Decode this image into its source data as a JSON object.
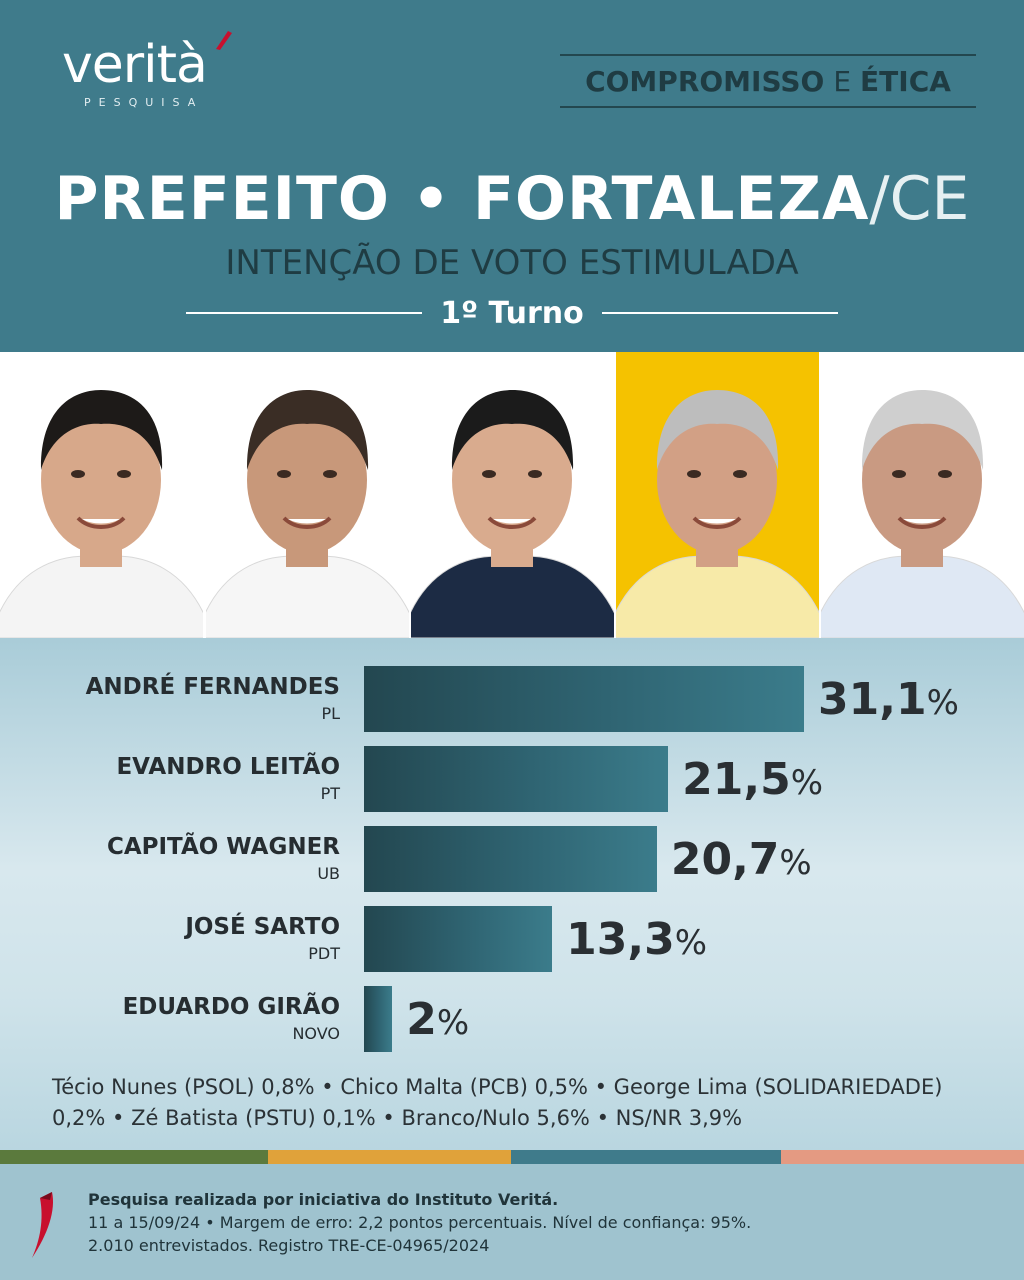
{
  "brand": {
    "logo_word": "verità",
    "logo_sub": "PESQUISA",
    "slogan_part1": "COMPROMISSO",
    "slogan_part2": "E",
    "slogan_part3": "ÉTICA",
    "accent_color": "#c8102e"
  },
  "header": {
    "title_main": "PREFEITO • FORTALEZA",
    "title_state": "/CE",
    "subtitle": "INTENÇÃO DE VOTO ESTIMULADA",
    "round": "1º Turno",
    "background_color": "#3f7b8b"
  },
  "photos": [
    {
      "name": "André Fernandes",
      "bg": "#ffffff"
    },
    {
      "name": "Evandro Leitão",
      "bg": "#ffffff"
    },
    {
      "name": "Capitão Wagner",
      "bg": "#ffffff"
    },
    {
      "name": "José Sarto",
      "bg": "#f5c200"
    },
    {
      "name": "Eduardo Girão",
      "bg": "#ffffff"
    }
  ],
  "chart_data": {
    "type": "bar",
    "orientation": "horizontal",
    "categories": [
      "ANDRÉ FERNANDES",
      "EVANDRO LEITÃO",
      "CAPITÃO WAGNER",
      "JOSÉ SARTO",
      "EDUARDO GIRÃO"
    ],
    "parties": [
      "PL",
      "PT",
      "UB",
      "PDT",
      "NOVO"
    ],
    "values": [
      31.1,
      21.5,
      20.7,
      13.3,
      2
    ],
    "value_labels": [
      "31,1",
      "21,5",
      "20,7",
      "13,3",
      "2"
    ],
    "unit": "%",
    "title": "",
    "xlabel": "",
    "ylabel": "",
    "xlim": [
      0,
      31.1
    ],
    "grid": false,
    "legend": "none"
  },
  "others_text": "Técio Nunes (PSOL) 0,8% • Chico Malta (PCB) 0,5% • George Lima (SOLIDARIEDADE) 0,2% • Zé Batista (PSTU) 0,1% • Branco/Nulo 5,6% • NS/NR 3,9%",
  "stripe_colors": [
    "#5b7a3d",
    "#e0a23a",
    "#3f7b8b",
    "#e49a82"
  ],
  "footer": {
    "line1": "Pesquisa realizada por iniciativa do Instituto Veritá.",
    "line2": "11 a 15/09/24 • Margem de erro: 2,2 pontos percentuais. Nível de confiança: 95%.",
    "line3": "2.010 entrevistados. Registro TRE-CE-04965/2024"
  }
}
